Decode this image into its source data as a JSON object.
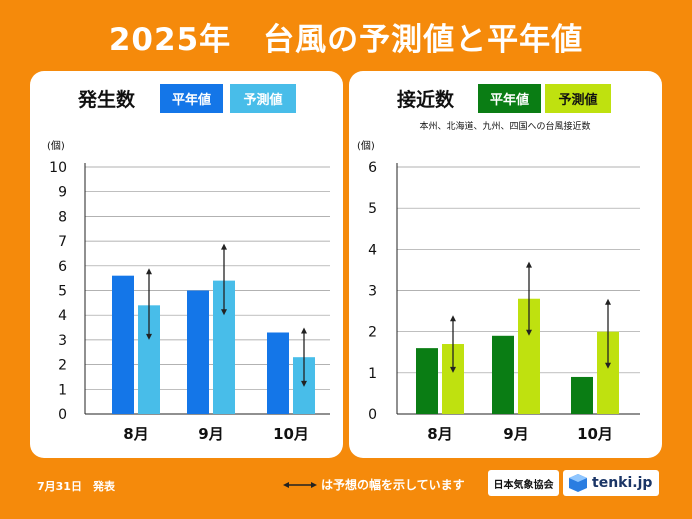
{
  "title": "2025年　台風の予測値と平年値",
  "colors": {
    "background": "#f58a0b",
    "normal_blue": "#1476e8",
    "forecast_blue": "#48bde9",
    "normal_green": "#0a7d14",
    "forecast_green": "#bfe10f",
    "grid": "#999999"
  },
  "chart_data": [
    {
      "type": "bar",
      "title": "発生数",
      "legend": [
        "平年値",
        "予測値"
      ],
      "unit_label": "(個)",
      "categories": [
        "8月",
        "9月",
        "10月"
      ],
      "ylim": [
        0,
        10
      ],
      "yticks": [
        "0",
        "1",
        "2",
        "3",
        "4",
        "5",
        "6",
        "7",
        "8",
        "9",
        "10"
      ],
      "series": [
        {
          "name": "平年値",
          "values": [
            5.6,
            5.0,
            3.3
          ]
        },
        {
          "name": "予測値",
          "values": [
            4.4,
            5.4,
            2.3
          ]
        }
      ],
      "forecast_range": [
        [
          3.0,
          5.9
        ],
        [
          4.0,
          6.9
        ],
        [
          1.1,
          3.5
        ]
      ]
    },
    {
      "type": "bar",
      "title": "接近数",
      "legend": [
        "平年値",
        "予測値"
      ],
      "subtitle": "本州、北海道、九州、四国への台風接近数",
      "unit_label": "(個)",
      "categories": [
        "8月",
        "9月",
        "10月"
      ],
      "ylim": [
        0,
        6
      ],
      "yticks": [
        "0",
        "1",
        "2",
        "3",
        "4",
        "5",
        "6"
      ],
      "series": [
        {
          "name": "平年値",
          "values": [
            1.6,
            1.9,
            0.9
          ]
        },
        {
          "name": "予測値",
          "values": [
            1.7,
            2.8,
            2.0
          ]
        }
      ],
      "forecast_range": [
        [
          1.0,
          2.4
        ],
        [
          1.9,
          3.7
        ],
        [
          1.1,
          2.8
        ]
      ]
    }
  ],
  "footer": {
    "date": "7月31日　発表",
    "legend_note": "は予想の幅を示しています",
    "jma_logo": "日本気象協会",
    "tenki_logo": "tenki.jp"
  }
}
